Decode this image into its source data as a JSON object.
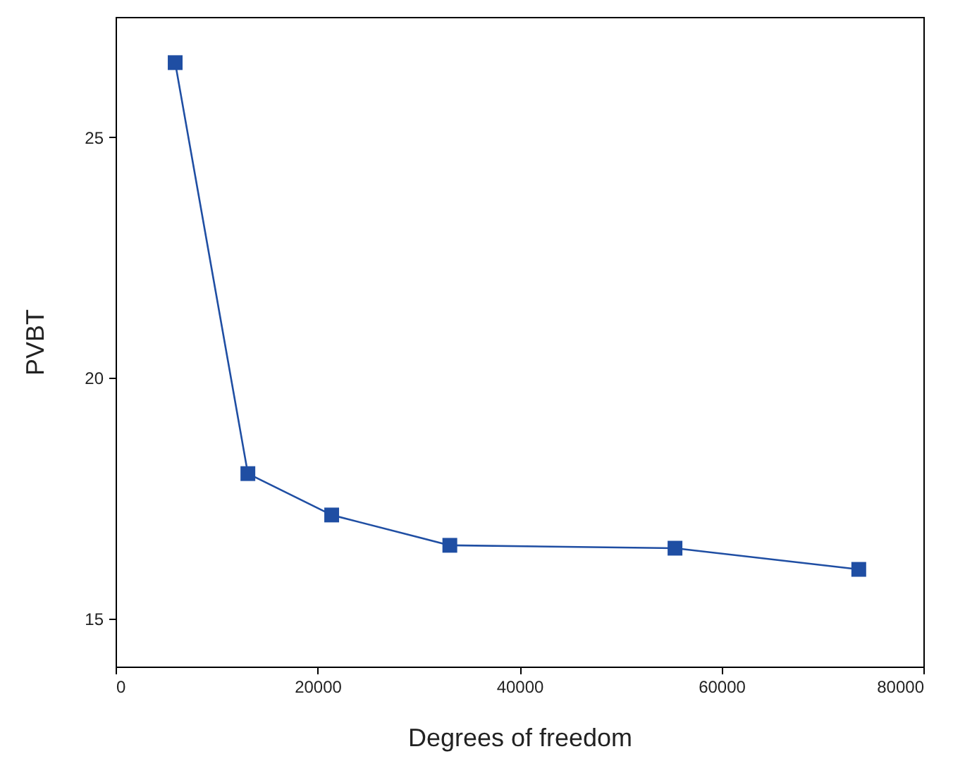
{
  "chart_data": {
    "type": "line",
    "xlabel": "Degrees of freedom",
    "ylabel": "PVBT",
    "x": [
      5900,
      13100,
      21400,
      33100,
      55400,
      73600
    ],
    "series": [
      {
        "color": "#1f4ea3",
        "values": [
          26.55,
          18.01,
          17.15,
          16.52,
          16.46,
          16.02
        ]
      }
    ],
    "xlim": [
      0,
      80000
    ],
    "xticks": [
      0,
      20000,
      40000,
      60000,
      80000
    ],
    "ylim": [
      14,
      27.5
    ],
    "yticks": [
      15,
      20,
      25
    ],
    "marker": "square",
    "line_style": "solid",
    "grid": false
  }
}
